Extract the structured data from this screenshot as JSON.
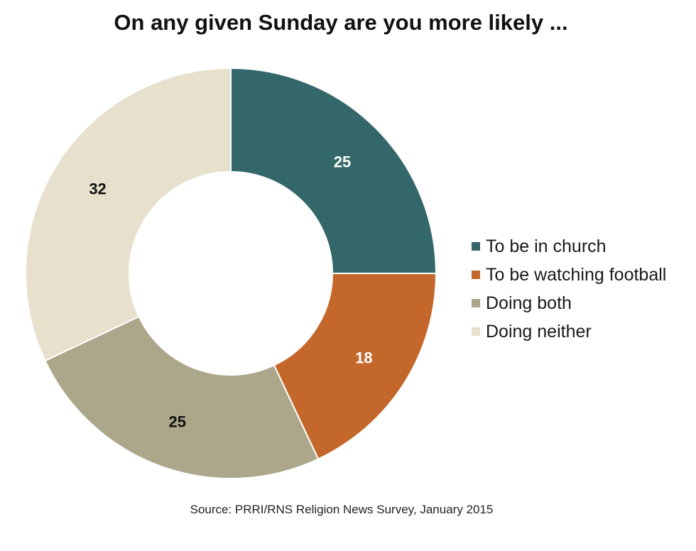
{
  "chart_data": {
    "type": "pie",
    "title": "On any given Sunday are you more likely ...",
    "categories": [
      "To be in church",
      "To be watching football",
      "Doing both",
      "Doing neither"
    ],
    "values": [
      25,
      18,
      25,
      32
    ],
    "colors": [
      "#33676a",
      "#c4672a",
      "#aca68a",
      "#e6e0cc"
    ],
    "label_colors": [
      "#ffffff",
      "#ffffff",
      "#111111",
      "#111111"
    ],
    "legend": "right",
    "donut": true,
    "source": "Source: PRRI/RNS Religion News Survey, January 2015"
  }
}
